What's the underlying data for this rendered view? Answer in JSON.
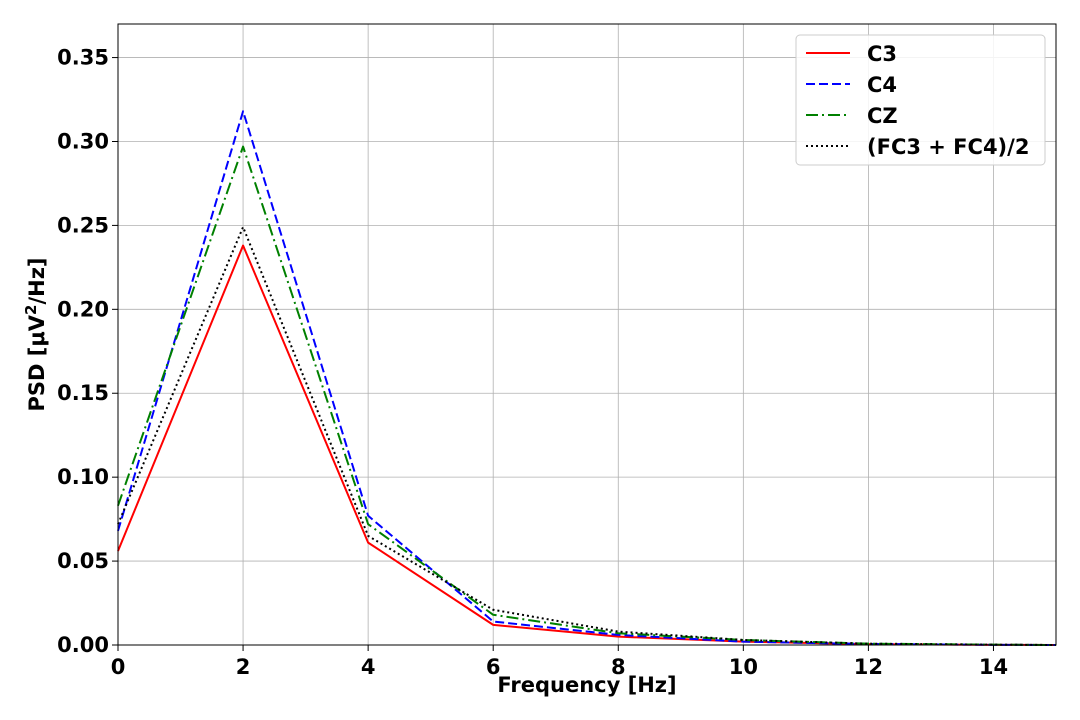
{
  "chart_data": {
    "type": "line",
    "xlabel": "Frequency [Hz]",
    "ylabel_main": "PSD [μV",
    "ylabel_sup": "2",
    "ylabel_tail": "/Hz]",
    "xlim": [
      0,
      15
    ],
    "ylim": [
      0,
      0.37
    ],
    "xticks": [
      0,
      2,
      4,
      6,
      8,
      10,
      12,
      14
    ],
    "xtick_labels": [
      "0",
      "2",
      "4",
      "6",
      "8",
      "10",
      "12",
      "14"
    ],
    "yticks": [
      0,
      0.05,
      0.1,
      0.15,
      0.2,
      0.25,
      0.3,
      0.35
    ],
    "ytick_labels": [
      "0.00",
      "0.05",
      "0.10",
      "0.15",
      "0.20",
      "0.25",
      "0.30",
      "0.35"
    ],
    "grid": true,
    "legend_position": "top-right",
    "x": [
      0,
      2,
      4,
      6,
      8,
      10,
      12,
      14,
      15
    ],
    "series": [
      {
        "name": "C3",
        "color": "#ff0000",
        "style": "solid",
        "values": [
          0.056,
          0.238,
          0.061,
          0.012,
          0.005,
          0.002,
          0.0005,
          0.0001,
          0.0
        ]
      },
      {
        "name": "C4",
        "color": "#0000ff",
        "style": "dashed",
        "values": [
          0.068,
          0.318,
          0.077,
          0.014,
          0.006,
          0.002,
          0.0006,
          0.0001,
          0.0
        ]
      },
      {
        "name": "CZ",
        "color": "#008000",
        "style": "dashdot",
        "values": [
          0.083,
          0.297,
          0.072,
          0.018,
          0.007,
          0.003,
          0.0008,
          0.0002,
          0.0
        ]
      },
      {
        "name": "(FC3 + FC4)/2",
        "color": "#000000",
        "style": "dotted",
        "values": [
          0.072,
          0.249,
          0.065,
          0.021,
          0.008,
          0.003,
          0.0008,
          0.0002,
          0.0
        ]
      }
    ]
  }
}
